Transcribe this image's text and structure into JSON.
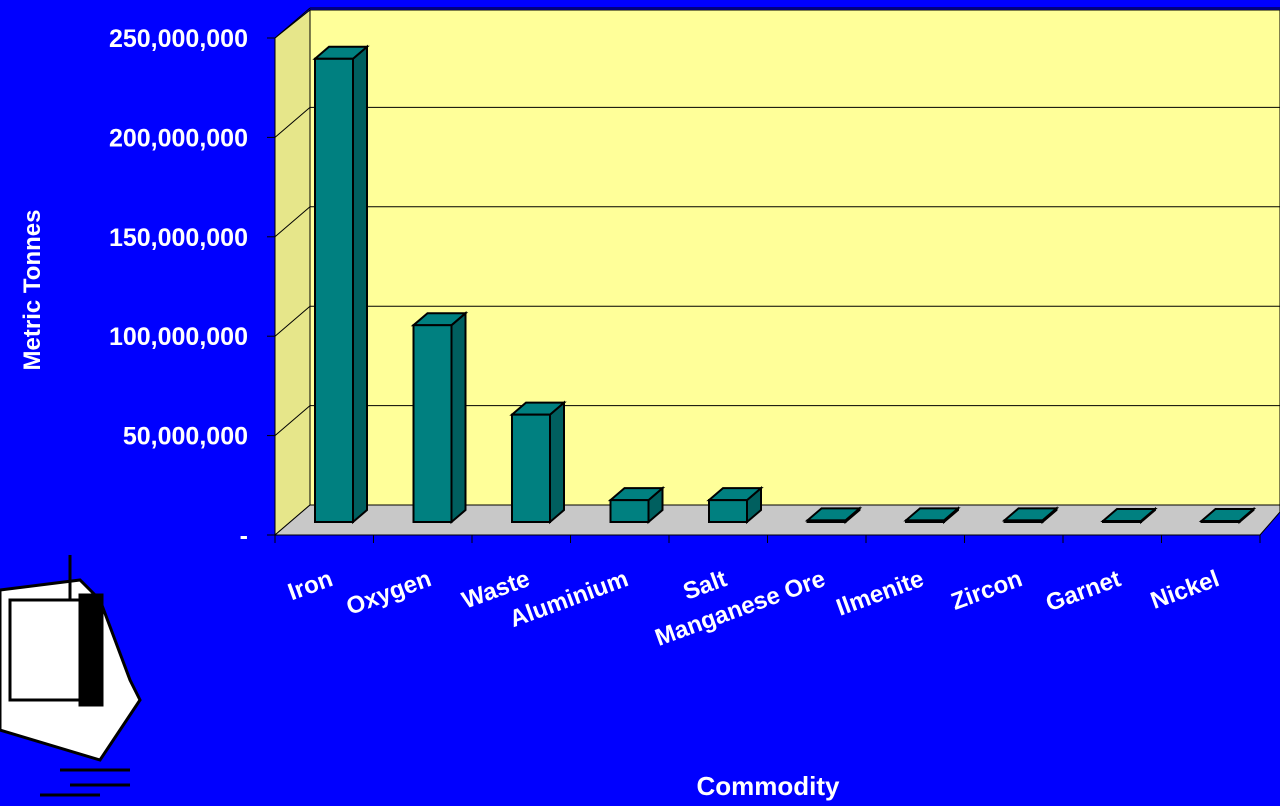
{
  "chart_data": {
    "type": "bar3d",
    "x_label": "Commodity",
    "y_label": "Metric Tonnes",
    "categories": [
      "Iron",
      "Oxygen",
      "Waste",
      "Aluminium",
      "Salt",
      "Manganese Ore",
      "Ilmenite",
      "Zircon",
      "Garnet",
      "Nickel"
    ],
    "values": [
      233000000,
      99000000,
      54000000,
      11000000,
      11000000,
      800000,
      800000,
      800000,
      500000,
      500000
    ],
    "color": "#008080",
    "ylim": [
      0,
      250000000
    ],
    "yticks": [
      {
        "value": 0,
        "label": "-"
      },
      {
        "value": 50000000,
        "label": "50,000,000"
      },
      {
        "value": 100000000,
        "label": "100,000,000"
      },
      {
        "value": 150000000,
        "label": "150,000,000"
      },
      {
        "value": 200000000,
        "label": "200,000,000"
      },
      {
        "value": 250000000,
        "label": "250,000,000"
      }
    ],
    "grid": true
  }
}
